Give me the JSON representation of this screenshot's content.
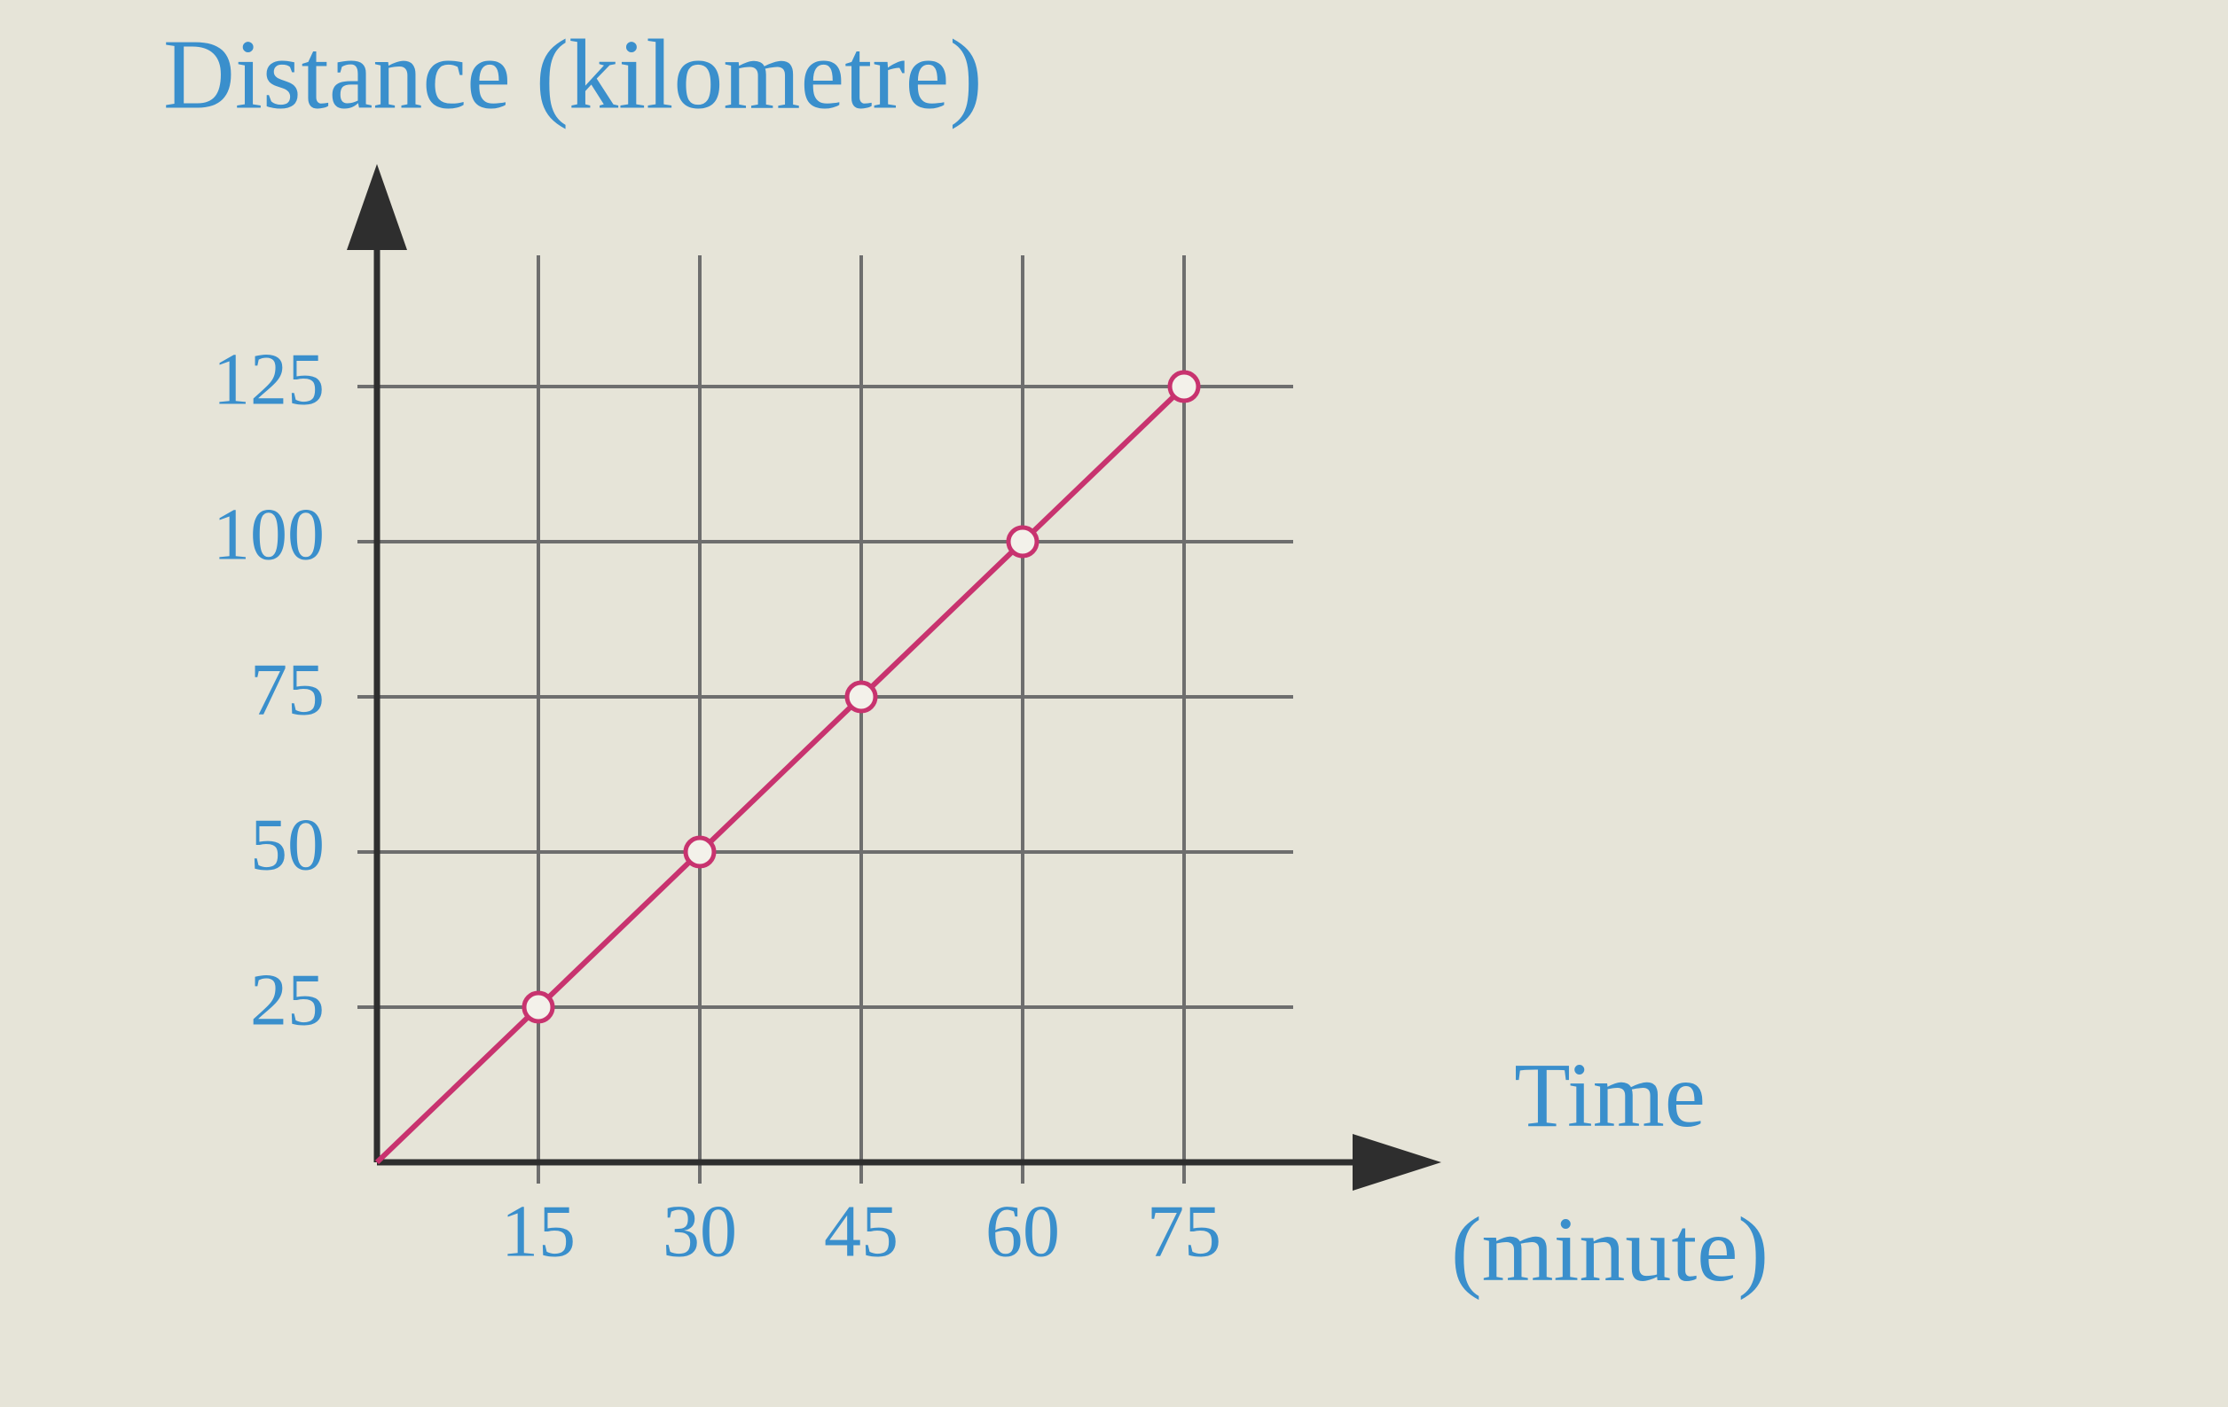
{
  "chart_data": {
    "type": "line",
    "title": "Distance (kilometre)",
    "x_label": "Time",
    "x_label_unit": "(minute)",
    "x": [
      0,
      15,
      30,
      45,
      60,
      75
    ],
    "series": [
      {
        "name": "distance",
        "color": "#c8336f",
        "values": [
          0,
          25,
          50,
          75,
          100,
          125
        ]
      }
    ],
    "xlim": [
      0,
      90
    ],
    "xticks": [
      15,
      30,
      45,
      60,
      75
    ],
    "ylim": [
      0,
      150
    ],
    "yticks": [
      25,
      50,
      75,
      100,
      125
    ],
    "grid": true
  }
}
